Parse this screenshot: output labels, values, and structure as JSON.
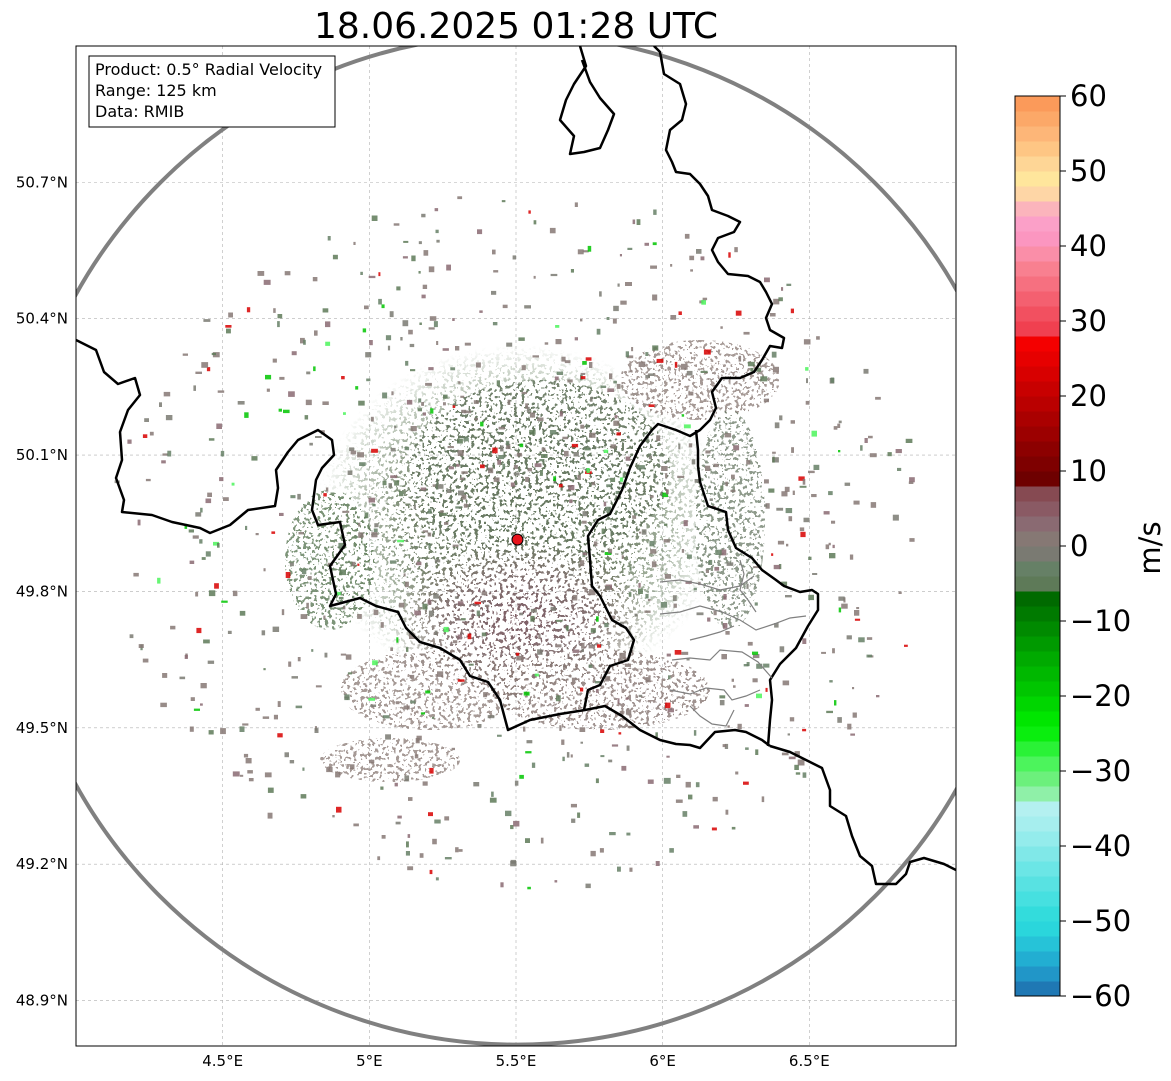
{
  "title": "18.06.2025 01:28 UTC",
  "info_box": {
    "product": "Product: 0.5° Radial Velocity",
    "range": "Range: 125 km",
    "data": "Data: RMIB"
  },
  "map": {
    "lon_range": [
      4.0,
      7.0
    ],
    "lat_range": [
      48.8,
      51.0
    ],
    "lon_ticks": [
      {
        "value": 4.5,
        "label": "4.5°E"
      },
      {
        "value": 5.0,
        "label": "5°E"
      },
      {
        "value": 5.5,
        "label": "5.5°E"
      },
      {
        "value": 6.0,
        "label": "6°E"
      },
      {
        "value": 6.5,
        "label": "6.5°E"
      }
    ],
    "lat_ticks": [
      {
        "value": 48.9,
        "label": "48.9°N"
      },
      {
        "value": 49.2,
        "label": "49.2°N"
      },
      {
        "value": 49.5,
        "label": "49.5°N"
      },
      {
        "value": 49.8,
        "label": "49.8°N"
      },
      {
        "value": 50.1,
        "label": "50.1°N"
      },
      {
        "value": 50.4,
        "label": "50.4°N"
      },
      {
        "value": 50.7,
        "label": "50.7°N"
      }
    ],
    "grid": true,
    "radar_site": {
      "lon": 5.505,
      "lat": 49.914
    },
    "range_km": 125,
    "border_color": "#000000",
    "range_ring_color": "#808080",
    "site_color": "#e8141c"
  },
  "colorbar": {
    "label": "m/s",
    "min": -60,
    "max": 60,
    "ticks": [
      {
        "value": 60,
        "label": "60"
      },
      {
        "value": 50,
        "label": "50"
      },
      {
        "value": 40,
        "label": "40"
      },
      {
        "value": 30,
        "label": "30"
      },
      {
        "value": 20,
        "label": "20"
      },
      {
        "value": 10,
        "label": "10"
      },
      {
        "value": 0,
        "label": "0"
      },
      {
        "value": -10,
        "label": "−10"
      },
      {
        "value": -20,
        "label": "−20"
      },
      {
        "value": -30,
        "label": "−30"
      },
      {
        "value": -40,
        "label": "−40"
      },
      {
        "value": -50,
        "label": "−50"
      },
      {
        "value": -60,
        "label": "−60"
      }
    ],
    "stops": [
      {
        "from": -60,
        "color": "#1f78b4"
      },
      {
        "from": -58,
        "color": "#2196c8"
      },
      {
        "from": -56,
        "color": "#22aed2"
      },
      {
        "from": -54,
        "color": "#26c3d8"
      },
      {
        "from": -52,
        "color": "#2ad6dc"
      },
      {
        "from": -50,
        "color": "#33dcdc"
      },
      {
        "from": -48,
        "color": "#46e0e0"
      },
      {
        "from": -46,
        "color": "#58e2e2"
      },
      {
        "from": -44,
        "color": "#6be6e6"
      },
      {
        "from": -42,
        "color": "#80e8e8"
      },
      {
        "from": -40,
        "color": "#94ecec"
      },
      {
        "from": -38,
        "color": "#a6eeee"
      },
      {
        "from": -36,
        "color": "#b4f0f0"
      },
      {
        "from": -34,
        "color": "#8ff0a8"
      },
      {
        "from": -32,
        "color": "#6cf07c"
      },
      {
        "from": -30,
        "color": "#4cf45c"
      },
      {
        "from": -28,
        "color": "#2af236"
      },
      {
        "from": -26,
        "color": "#0aee0e"
      },
      {
        "from": -24,
        "color": "#00e600"
      },
      {
        "from": -22,
        "color": "#00d600"
      },
      {
        "from": -20,
        "color": "#00c600"
      },
      {
        "from": -18,
        "color": "#00b800"
      },
      {
        "from": -16,
        "color": "#00aa00"
      },
      {
        "from": -14,
        "color": "#009a00"
      },
      {
        "from": -12,
        "color": "#008a00"
      },
      {
        "from": -10,
        "color": "#007a00"
      },
      {
        "from": -8,
        "color": "#006a00"
      },
      {
        "from": -6,
        "color": "#5e7a58"
      },
      {
        "from": -4,
        "color": "#668066"
      },
      {
        "from": -2,
        "color": "#7a7a72"
      },
      {
        "from": 0,
        "color": "#867874"
      },
      {
        "from": 2,
        "color": "#8a6a72"
      },
      {
        "from": 4,
        "color": "#8a5a64"
      },
      {
        "from": 6,
        "color": "#864a52"
      },
      {
        "from": 8,
        "color": "#6e0000"
      },
      {
        "from": 10,
        "color": "#7e0000"
      },
      {
        "from": 12,
        "color": "#8c0000"
      },
      {
        "from": 14,
        "color": "#9c0000"
      },
      {
        "from": 16,
        "color": "#aa0000"
      },
      {
        "from": 18,
        "color": "#ba0000"
      },
      {
        "from": 20,
        "color": "#c80000"
      },
      {
        "from": 22,
        "color": "#d80000"
      },
      {
        "from": 24,
        "color": "#e60000"
      },
      {
        "from": 26,
        "color": "#f40000"
      },
      {
        "from": 28,
        "color": "#f04050"
      },
      {
        "from": 30,
        "color": "#f25060"
      },
      {
        "from": 32,
        "color": "#f46070"
      },
      {
        "from": 34,
        "color": "#f67080"
      },
      {
        "from": 36,
        "color": "#f88090"
      },
      {
        "from": 38,
        "color": "#fa8ea8"
      },
      {
        "from": 40,
        "color": "#fb96c0"
      },
      {
        "from": 42,
        "color": "#fba0c8"
      },
      {
        "from": 44,
        "color": "#fbb4bc"
      },
      {
        "from": 46,
        "color": "#fed6a6"
      },
      {
        "from": 48,
        "color": "#ffe69c"
      },
      {
        "from": 50,
        "color": "#fed696"
      },
      {
        "from": 52,
        "color": "#fec684"
      },
      {
        "from": 54,
        "color": "#fdb678"
      },
      {
        "from": 56,
        "color": "#fca868"
      },
      {
        "from": 58,
        "color": "#fb9a5a"
      }
    ]
  }
}
